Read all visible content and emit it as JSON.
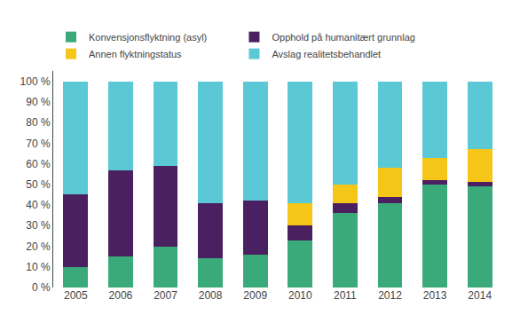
{
  "chart_data": {
    "type": "bar",
    "stacked": true,
    "categories": [
      "2005",
      "2006",
      "2007",
      "2008",
      "2009",
      "2010",
      "2011",
      "2012",
      "2013",
      "2014"
    ],
    "series": [
      {
        "name": "Konvensjonsflyktning (asyl)",
        "color": "#3AAA7A",
        "values": [
          10,
          15,
          20,
          14,
          16,
          23,
          36,
          41,
          50,
          49
        ]
      },
      {
        "name": "Opphold på humanitært grunnlag",
        "color": "#4A2060",
        "values": [
          35,
          42,
          39,
          27,
          26,
          7,
          5,
          3,
          2,
          2
        ]
      },
      {
        "name": "Annen flyktningstatus",
        "color": "#F5C518",
        "values": [
          0,
          0,
          0,
          0,
          0,
          11,
          9,
          14,
          11,
          16
        ]
      },
      {
        "name": "Avslag realitetsbehandlet",
        "color": "#5BC8D5",
        "values": [
          55,
          43,
          41,
          59,
          58,
          59,
          50,
          42,
          37,
          33
        ]
      }
    ],
    "ylim": [
      0,
      105
    ],
    "yticks": [
      {
        "value": 0,
        "label": "0 %"
      },
      {
        "value": 10,
        "label": "10 %"
      },
      {
        "value": 20,
        "label": "20 %"
      },
      {
        "value": 30,
        "label": "30 %"
      },
      {
        "value": 40,
        "label": "40 %"
      },
      {
        "value": 50,
        "label": "50 %"
      },
      {
        "value": 60,
        "label": "60 %"
      },
      {
        "value": 70,
        "label": "70 %"
      },
      {
        "value": 80,
        "label": "80 %"
      },
      {
        "value": 90,
        "label": "90 %"
      },
      {
        "value": 100,
        "label": "100 %"
      }
    ],
    "grid": false,
    "legend": "top"
  }
}
